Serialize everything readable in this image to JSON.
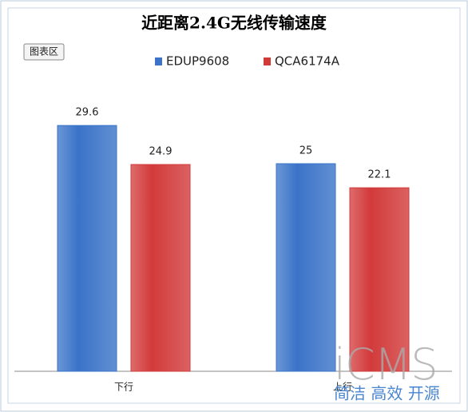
{
  "chart_data": {
    "type": "bar",
    "title": "近距离2.4G无线传输速度",
    "categories": [
      "下行",
      "上行"
    ],
    "series": [
      {
        "name": "EDUP9608",
        "color": "#3a73c8",
        "values": [
          29.6,
          25
        ]
      },
      {
        "name": "QCA6174A",
        "color": "#d23a3a",
        "values": [
          24.9,
          22.1
        ]
      }
    ],
    "ylim": [
      0,
      35
    ]
  },
  "tooltip": "图表区",
  "watermark": {
    "logo": "iCMS",
    "slogan": "简洁 高效 开源"
  }
}
